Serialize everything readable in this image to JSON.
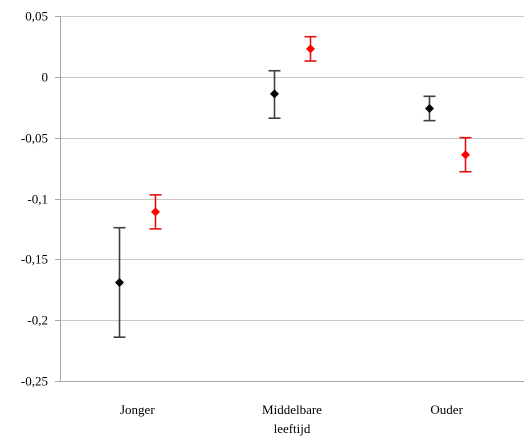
{
  "chart_data": {
    "type": "scatter",
    "title": "",
    "xlabel": "",
    "ylabel": "",
    "ylim": [
      -0.25,
      0.05
    ],
    "yticks": [
      0.05,
      0,
      -0.05,
      -0.1,
      -0.15,
      -0.2,
      -0.25
    ],
    "ytick_labels": [
      "0,05",
      "0",
      "-0,05",
      "-0,1",
      "-0,15",
      "-0,2",
      "-0,25"
    ],
    "grid": "horizontal",
    "legend": "none",
    "categories": [
      {
        "lines": [
          "Jonger"
        ]
      },
      {
        "lines": [
          "Middelbare",
          "leeftijd"
        ]
      },
      {
        "lines": [
          "Ouder"
        ]
      }
    ],
    "series": [
      {
        "color": "#000000",
        "error_color": "#404040",
        "values": [
          -0.169,
          -0.014,
          -0.026
        ],
        "err_low": [
          -0.214,
          -0.034,
          -0.036
        ],
        "err_high": [
          -0.124,
          0.005,
          -0.016
        ]
      },
      {
        "color": "#ff0000",
        "error_color": "#e01010",
        "values": [
          -0.111,
          0.023,
          -0.064
        ],
        "err_low": [
          -0.125,
          0.013,
          -0.078
        ],
        "err_high": [
          -0.097,
          0.033,
          -0.05
        ]
      }
    ]
  }
}
